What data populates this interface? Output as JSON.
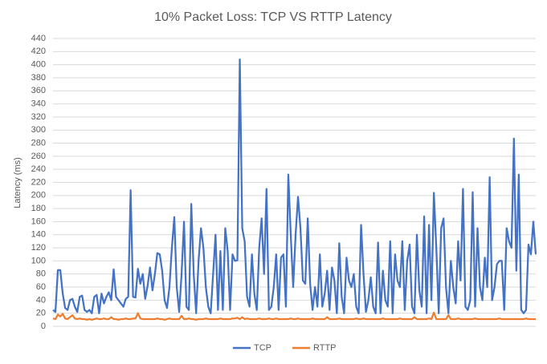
{
  "chart_data": {
    "type": "line",
    "title": "10% Packet Loss: TCP VS RTTP Latency",
    "y_label": "Latency (ms)",
    "ylim": [
      0,
      440
    ],
    "yticks": [
      0,
      20,
      40,
      60,
      80,
      100,
      120,
      140,
      160,
      180,
      200,
      220,
      240,
      260,
      280,
      300,
      320,
      340,
      360,
      380,
      400,
      420,
      440
    ],
    "grid": true,
    "legend": "bottom",
    "series": [
      {
        "name": "TCP",
        "color": "#4472c4",
        "values": [
          25,
          22,
          86,
          86,
          50,
          28,
          25,
          40,
          42,
          30,
          22,
          45,
          47,
          25,
          22,
          25,
          20,
          45,
          48,
          20,
          50,
          35,
          45,
          52,
          40,
          87,
          45,
          40,
          35,
          30,
          42,
          45,
          208,
          45,
          44,
          88,
          65,
          80,
          42,
          62,
          90,
          55,
          80,
          112,
          110,
          85,
          40,
          28,
          60,
          120,
          167,
          60,
          22,
          80,
          160,
          30,
          25,
          187,
          80,
          20,
          100,
          150,
          120,
          60,
          30,
          20,
          80,
          140,
          25,
          115,
          25,
          150,
          115,
          25,
          110,
          100,
          101,
          408,
          150,
          130,
          45,
          30,
          110,
          50,
          25,
          120,
          165,
          80,
          210,
          25,
          30,
          60,
          110,
          25,
          105,
          110,
          30,
          232,
          140,
          60,
          140,
          198,
          150,
          70,
          65,
          165,
          65,
          25,
          60,
          30,
          110,
          30,
          50,
          85,
          25,
          90,
          70,
          20,
          127,
          45,
          20,
          105,
          70,
          60,
          80,
          30,
          20,
          155,
          80,
          22,
          40,
          75,
          30,
          20,
          128,
          20,
          85,
          40,
          30,
          130,
          20,
          110,
          70,
          60,
          130,
          25,
          100,
          125,
          30,
          20,
          140,
          55,
          30,
          168,
          20,
          155,
          40,
          204,
          120,
          20,
          150,
          165,
          60,
          20,
          100,
          60,
          35,
          130,
          70,
          210,
          30,
          25,
          40,
          205,
          30,
          150,
          60,
          40,
          105,
          60,
          228,
          40,
          60,
          95,
          100,
          100,
          25,
          150,
          130,
          120,
          287,
          85,
          232,
          25,
          20,
          25,
          125,
          110,
          160,
          110
        ]
      },
      {
        "name": "RTTP",
        "color": "#ed7d31",
        "values": [
          12,
          11,
          18,
          15,
          19,
          12,
          11,
          14,
          17,
          12,
          11,
          12,
          11,
          11,
          10,
          11,
          10,
          11,
          12,
          11,
          11,
          12,
          11,
          11,
          14,
          11,
          11,
          10,
          11,
          11,
          12,
          11,
          11,
          12,
          12,
          20,
          12,
          11,
          11,
          11,
          11,
          11,
          11,
          12,
          11,
          11,
          10,
          11,
          12,
          11,
          11,
          11,
          11,
          16,
          11,
          11,
          12,
          11,
          11,
          10,
          11,
          11,
          11,
          12,
          11,
          11,
          11,
          11,
          11,
          12,
          11,
          11,
          11,
          11,
          12,
          12,
          13,
          11,
          14,
          11,
          12,
          11,
          11,
          11,
          11,
          12,
          11,
          11,
          11,
          12,
          11,
          11,
          12,
          11,
          11,
          11,
          11,
          11,
          12,
          11,
          11,
          12,
          11,
          11,
          11,
          11,
          11,
          12,
          11,
          11,
          11,
          11,
          11,
          14,
          11,
          11,
          11,
          11,
          12,
          11,
          11,
          11,
          11,
          11,
          11,
          12,
          11,
          11,
          12,
          11,
          11,
          11,
          11,
          11,
          11,
          11,
          12,
          11,
          11,
          11,
          11,
          11,
          11,
          12,
          11,
          11,
          11,
          11,
          11,
          14,
          11,
          11,
          11,
          11,
          11,
          12,
          11,
          21,
          11,
          11,
          11,
          11,
          11,
          17,
          11,
          11,
          11,
          12,
          11,
          11,
          11,
          11,
          11,
          11,
          12,
          11,
          11,
          11,
          11,
          11,
          11,
          11,
          11,
          11,
          12,
          11,
          11,
          11,
          11,
          11,
          11,
          11,
          11,
          11,
          11,
          12,
          11,
          11,
          11,
          11
        ]
      }
    ]
  }
}
